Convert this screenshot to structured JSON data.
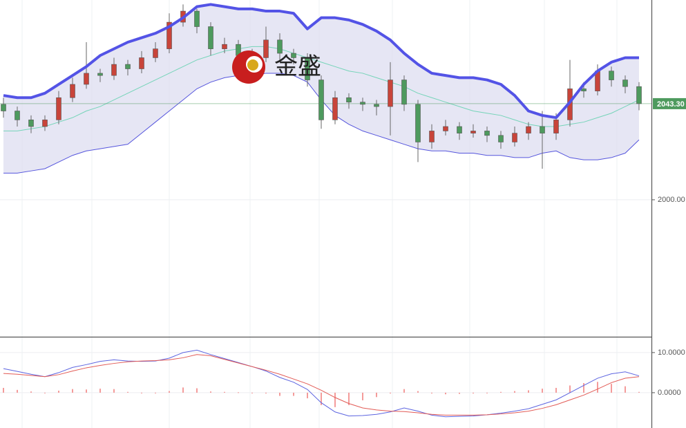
{
  "watermark": "金盛",
  "chart_data": [
    {
      "type": "candlestick",
      "open": [
        2043,
        2040,
        2036,
        2033,
        2036,
        2046,
        2052,
        2057,
        2056,
        2061,
        2059,
        2064,
        2068,
        2080,
        2085,
        2078,
        2068,
        2070,
        2065,
        2064,
        2072,
        2066,
        2064,
        2054,
        2036,
        2046,
        2044,
        2043,
        2042,
        2054,
        2043,
        2026,
        2031,
        2033,
        2030,
        2031,
        2029,
        2026,
        2030,
        2033,
        2030,
        2036,
        2050,
        2049,
        2058,
        2054,
        2051
      ],
      "high": [
        2046,
        2042,
        2038,
        2038,
        2049,
        2055,
        2071,
        2059,
        2064,
        2063,
        2067,
        2071,
        2084,
        2088,
        2086,
        2080,
        2073,
        2072,
        2068,
        2078,
        2075,
        2068,
        2066,
        2056,
        2049,
        2048,
        2046,
        2045,
        2062,
        2056,
        2045,
        2034,
        2036,
        2035,
        2034,
        2033,
        2031,
        2033,
        2035,
        2040,
        2039,
        2063,
        2053,
        2061,
        2060,
        2056,
        2053
      ],
      "low": [
        2037,
        2033,
        2030,
        2031,
        2034,
        2044,
        2050,
        2053,
        2054,
        2056,
        2057,
        2062,
        2066,
        2078,
        2075,
        2065,
        2066,
        2062,
        2061,
        2062,
        2063,
        2061,
        2051,
        2032,
        2034,
        2041,
        2040,
        2038,
        2029,
        2040,
        2017,
        2023,
        2029,
        2027,
        2028,
        2026,
        2023,
        2024,
        2027,
        2014,
        2027,
        2033,
        2046,
        2047,
        2051,
        2048,
        2040.3
      ],
      "close": [
        2040,
        2036,
        2033,
        2036,
        2046,
        2052,
        2057,
        2056,
        2061,
        2059,
        2064,
        2068,
        2080,
        2085,
        2078,
        2068,
        2070,
        2065,
        2064,
        2072,
        2066,
        2064,
        2054,
        2036,
        2046,
        2044,
        2043,
        2042,
        2054,
        2043,
        2026,
        2031,
        2033,
        2030,
        2031,
        2029,
        2026,
        2030,
        2033,
        2030,
        2036,
        2050,
        2049,
        2058,
        2054,
        2051,
        2043.3
      ],
      "up_color": "#c8443a",
      "down_color": "#4e9a5e",
      "bands": {
        "fill": "#dcdcf0",
        "upper_color": "#5353e6",
        "middle_color": "#74d4b8",
        "lower_color": "#5555dd",
        "upper": [
          2047,
          2046,
          2046,
          2048,
          2052,
          2056,
          2060,
          2065,
          2068,
          2071,
          2073,
          2075,
          2078,
          2082,
          2087,
          2088,
          2087,
          2086,
          2086,
          2085,
          2085,
          2084,
          2077,
          2082,
          2082,
          2081,
          2079,
          2076,
          2072,
          2066,
          2061,
          2057,
          2056,
          2055,
          2055,
          2054,
          2052,
          2047,
          2040,
          2038,
          2037,
          2044,
          2052,
          2058,
          2062,
          2064,
          2064
        ],
        "middle": [
          2031,
          2031,
          2032,
          2033,
          2035,
          2037,
          2040,
          2042,
          2045,
          2048,
          2051,
          2054,
          2057,
          2060,
          2063,
          2065,
          2067,
          2068,
          2069,
          2069,
          2068,
          2066,
          2064,
          2062,
          2060,
          2058,
          2057,
          2055,
          2053,
          2051,
          2048,
          2046,
          2044,
          2042,
          2040,
          2039,
          2038,
          2036,
          2034,
          2033,
          2033,
          2034,
          2035,
          2037,
          2039,
          2042,
          2045
        ],
        "lower": [
          2012,
          2012,
          2013,
          2014,
          2017,
          2020,
          2022,
          2023,
          2024,
          2025,
          2030,
          2035,
          2040,
          2045,
          2050,
          2053,
          2055,
          2056,
          2056,
          2057,
          2057,
          2056,
          2053,
          2045,
          2038,
          2034,
          2031,
          2029,
          2027,
          2025,
          2023,
          2022,
          2022,
          2021,
          2021,
          2020,
          2020,
          2019,
          2019,
          2021,
          2022,
          2019,
          2018,
          2018,
          2019,
          2021,
          2027
        ]
      },
      "ylim": [
        1938.3,
        2090
      ],
      "yticks": [
        {
          "value": 2000,
          "label": "2000.00"
        }
      ],
      "last_price": {
        "value": 2043.3,
        "label": "2043.30",
        "color": "#4e9a5e"
      },
      "grid": true
    },
    {
      "type": "macd",
      "series": [
        {
          "color": "#5b63e0",
          "values": [
            6.0,
            5.3,
            4.6,
            4.0,
            5.0,
            6.3,
            7.0,
            7.8,
            8.2,
            7.9,
            7.8,
            7.9,
            8.6,
            10.0,
            10.6,
            9.5,
            8.5,
            7.5,
            6.5,
            5.4,
            3.8,
            2.6,
            0.8,
            -2.5,
            -4.8,
            -5.8,
            -5.7,
            -5.4,
            -4.8,
            -3.8,
            -4.6,
            -5.6,
            -6.0,
            -5.9,
            -5.8,
            -5.5,
            -5.1,
            -4.6,
            -4.0,
            -2.9,
            -1.8,
            0.0,
            1.8,
            3.6,
            4.7,
            5.2,
            4.2
          ]
        },
        {
          "color": "#e25a55",
          "values": [
            4.8,
            4.6,
            4.3,
            4.0,
            4.5,
            5.4,
            6.2,
            6.8,
            7.3,
            7.7,
            7.9,
            8.0,
            8.2,
            8.7,
            9.5,
            9.2,
            8.3,
            7.4,
            6.5,
            5.6,
            4.6,
            3.4,
            2.2,
            0.6,
            -1.2,
            -2.7,
            -3.8,
            -4.3,
            -4.6,
            -4.7,
            -5.0,
            -5.4,
            -5.6,
            -5.6,
            -5.6,
            -5.5,
            -5.3,
            -5.0,
            -4.6,
            -3.9,
            -3.0,
            -1.8,
            -0.6,
            0.9,
            2.5,
            3.6,
            4.0
          ]
        }
      ],
      "histogram": {
        "color": "#f07a78",
        "values": [
          1.2,
          0.7,
          0.3,
          0.0,
          0.5,
          0.9,
          0.8,
          1.0,
          0.9,
          0.2,
          -0.1,
          -0.1,
          0.4,
          1.3,
          1.1,
          0.3,
          0.2,
          0.1,
          0.0,
          -0.2,
          -0.8,
          -0.8,
          -1.4,
          -3.1,
          -3.6,
          -3.1,
          -1.9,
          -1.1,
          -0.2,
          0.9,
          0.4,
          -0.2,
          -0.4,
          -0.3,
          -0.2,
          0.0,
          0.2,
          0.4,
          0.6,
          1.0,
          1.2,
          1.8,
          2.4,
          2.7,
          2.2,
          1.6,
          0.2
        ]
      },
      "ylim": [
        -8.8,
        13.6
      ],
      "yticks": [
        {
          "value": 10,
          "label": "10.0000"
        },
        {
          "value": 0,
          "label": "0.0000"
        }
      ],
      "grid": true
    }
  ]
}
